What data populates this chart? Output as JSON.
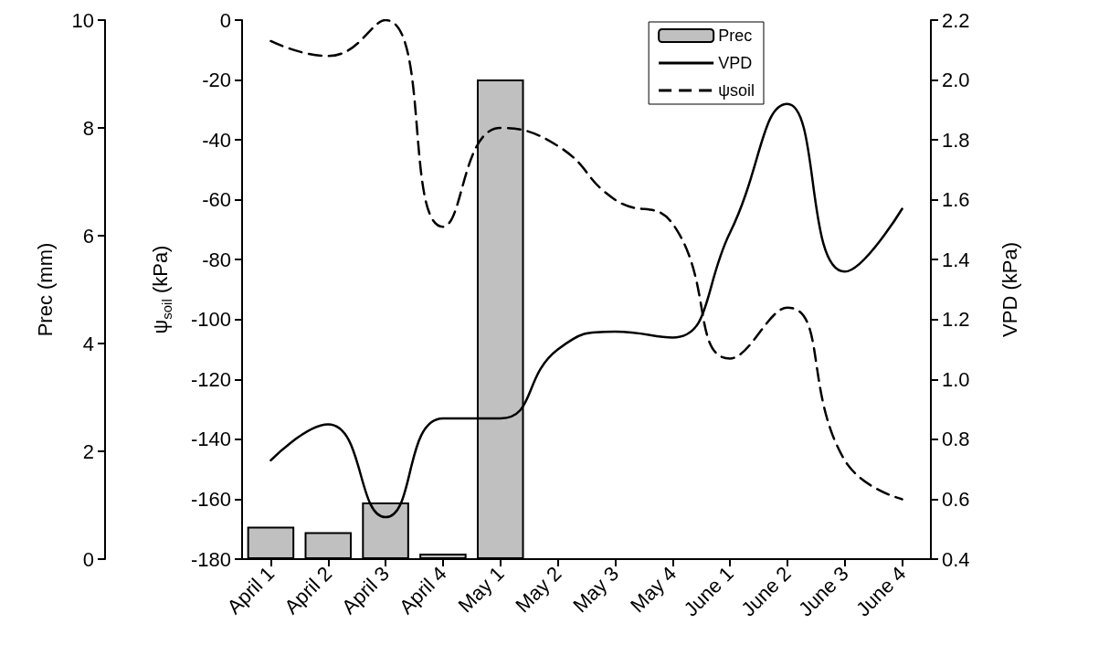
{
  "chart_data": {
    "type": "bar",
    "categories": [
      "April 1",
      "April 2",
      "April 3",
      "April 4",
      "May 1",
      "May 2",
      "May 3",
      "May 4",
      "June 1",
      "June 2",
      "June 3",
      "June 4"
    ],
    "series": [
      {
        "name": "Prec",
        "color": "#c0c0c0",
        "values": [
          0.6,
          0.5,
          1.05,
          0.1,
          8.9,
          null,
          null,
          null,
          null,
          null,
          null,
          null
        ]
      },
      {
        "name": "VPD",
        "type": "line",
        "axis": "y2",
        "line_style": "solid",
        "color": "#000000",
        "values": [
          0.73,
          0.85,
          0.54,
          0.87,
          0.87,
          1.1,
          1.16,
          1.14,
          1.49,
          1.92,
          1.36,
          1.57
        ]
      },
      {
        "name": "ψsoil",
        "type": "line",
        "axis": "y3",
        "line_style": "dashed",
        "color": "#000000",
        "values": [
          -7,
          -12,
          0,
          -69,
          -36,
          -42,
          -60,
          -68,
          -113,
          -96,
          -147,
          -160
        ]
      }
    ],
    "ylabel": "Prec (mm)",
    "ylim": [
      0,
      10
    ],
    "yticks": [
      0,
      2,
      4,
      6,
      8,
      10
    ],
    "y2label": "VPD (kPa)",
    "y2lim": [
      0.4,
      2.2
    ],
    "y2ticks": [
      0.4,
      0.6,
      0.8,
      {
        "value": 1,
        "label": "1.0"
      },
      1.2,
      1.4,
      1.6,
      1.8,
      {
        "value": 2,
        "label": "2.0"
      },
      2.2
    ],
    "y3label": "ψ$_{soil}$ (kPa)",
    "y3lim": [
      -180,
      0
    ],
    "y3ticks": [
      -180,
      -160,
      -140,
      -120,
      -100,
      -80,
      -60,
      -40,
      -20,
      0
    ],
    "legend": "top right",
    "grid": false,
    "marker": "none"
  }
}
